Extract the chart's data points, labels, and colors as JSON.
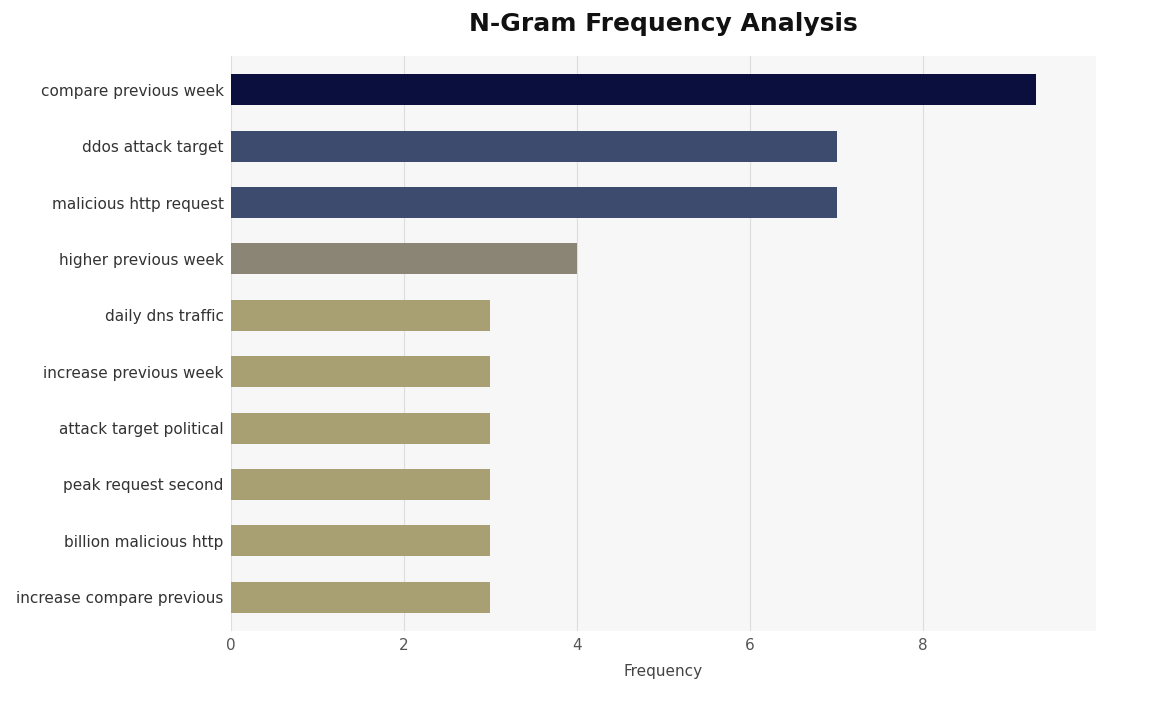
{
  "title": "N-Gram Frequency Analysis",
  "categories": [
    "increase compare previous",
    "billion malicious http",
    "peak request second",
    "attack target political",
    "increase previous week",
    "daily dns traffic",
    "higher previous week",
    "malicious http request",
    "ddos attack target",
    "compare previous week"
  ],
  "values": [
    3,
    3,
    3,
    3,
    3,
    3,
    4,
    7,
    7,
    9.3
  ],
  "bar_colors": [
    "#A89F72",
    "#A89F72",
    "#A89F72",
    "#A89F72",
    "#A89F72",
    "#A89F72",
    "#8B8575",
    "#3C4B6E",
    "#3C4B6E",
    "#0A0F3D"
  ],
  "xlabel": "Frequency",
  "xlim": [
    0,
    10
  ],
  "xticks": [
    0,
    2,
    4,
    6,
    8
  ],
  "figure_bg": "#FFFFFF",
  "plot_bg": "#F7F7F7",
  "title_fontsize": 18,
  "label_fontsize": 11,
  "tick_fontsize": 11,
  "bar_height": 0.55
}
